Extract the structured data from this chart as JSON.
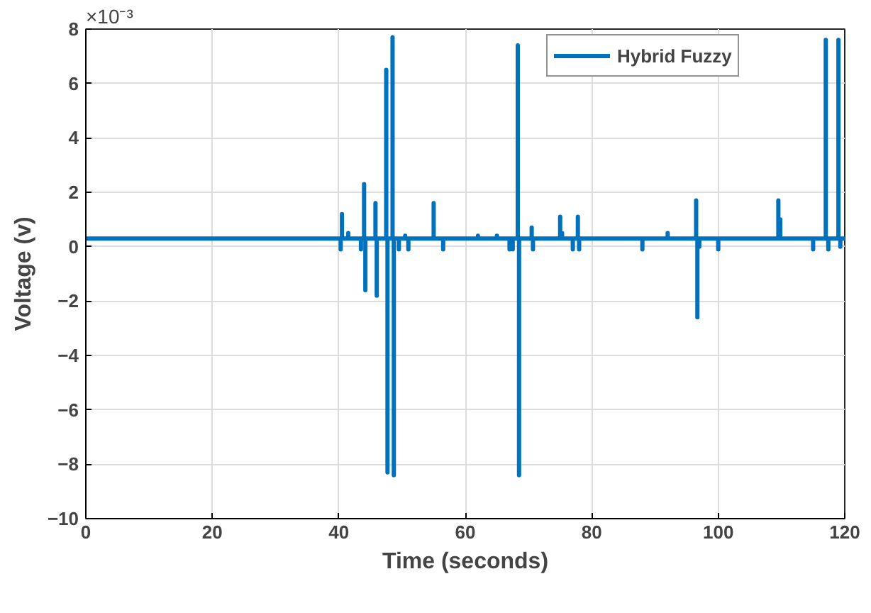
{
  "chart_data": {
    "type": "line",
    "xlabel": "Time (seconds)",
    "ylabel": "Voltage (v)",
    "annotations": [
      "×10⁻³"
    ],
    "xlim": [
      0,
      120
    ],
    "xticks": [
      0,
      20,
      40,
      60,
      80,
      100,
      120
    ],
    "ylim": [
      -10,
      8
    ],
    "yticks": [
      -10,
      -8,
      -6,
      -4,
      -2,
      0,
      2,
      4,
      6,
      8
    ],
    "grid": true,
    "legend": "top right",
    "line_style": "solid",
    "series": [
      {
        "name": "Hybrid Fuzzy",
        "color": "#0072bd",
        "x": [
          0,
          40.3,
          40.3,
          40.3,
          40.5,
          40.5,
          40.5,
          41.5,
          41.5,
          41.5,
          43.5,
          43.5,
          43.5,
          44,
          44,
          44,
          44.2,
          44.2,
          44.2,
          45.8,
          45.8,
          45.8,
          46,
          46,
          46,
          47.5,
          47.5,
          47.5,
          47.7,
          47.7,
          47.7,
          48.5,
          48.5,
          48.5,
          48.7,
          48.7,
          48.7,
          49.5,
          49.5,
          49.5,
          50.5,
          50.5,
          50.5,
          51,
          51,
          51,
          55,
          55,
          55,
          56.5,
          56.5,
          56.5,
          62,
          62,
          62,
          65,
          65,
          65,
          67,
          67,
          67,
          67.5,
          67.5,
          67.5,
          68.3,
          68.3,
          68.3,
          68.5,
          68.5,
          68.5,
          70.5,
          70.5,
          70.5,
          70.7,
          70.7,
          70.7,
          75,
          75,
          75,
          75.3,
          75.3,
          75.3,
          77,
          77,
          77,
          77.8,
          77.8,
          77.8,
          78,
          78,
          78,
          88,
          88,
          88,
          92,
          92,
          92,
          96.5,
          96.5,
          96.5,
          96.7,
          96.7,
          96.7,
          97,
          97,
          97,
          100,
          100,
          100,
          109.5,
          109.5,
          109.5,
          109.8,
          109.8,
          109.8,
          115,
          115,
          115,
          117,
          117,
          117,
          117.4,
          117.4,
          117.4,
          119,
          119,
          119,
          119.3,
          119.3,
          119.3,
          120
        ],
        "values": [
          0.3,
          0.3,
          -0.1,
          0.3,
          0.3,
          1.2,
          0.3,
          0.3,
          0.5,
          0.3,
          0.3,
          -0.1,
          0.3,
          0.3,
          2.3,
          0.3,
          0.3,
          -1.6,
          0.3,
          0.3,
          1.6,
          0.3,
          0.3,
          -1.8,
          0.3,
          0.3,
          6.5,
          0.3,
          0.3,
          -8.3,
          0.3,
          0.3,
          7.7,
          0.3,
          0.3,
          -8.4,
          0.3,
          0.3,
          -0.1,
          0.3,
          0.3,
          0.4,
          0.3,
          0.3,
          -0.1,
          0.3,
          0.3,
          1.6,
          0.3,
          0.3,
          -0.1,
          0.3,
          0.3,
          0.4,
          0.3,
          0.3,
          0.4,
          0.3,
          0.3,
          -0.1,
          0.3,
          0.3,
          -0.1,
          0.3,
          0.3,
          7.4,
          0.3,
          0.3,
          -8.4,
          0.3,
          0.3,
          0.7,
          0.3,
          0.3,
          -0.1,
          0.3,
          0.3,
          1.1,
          0.3,
          0.3,
          0.5,
          0.3,
          0.3,
          -0.1,
          0.3,
          0.3,
          1.1,
          0.3,
          0.3,
          -0.1,
          0.3,
          0.3,
          -0.1,
          0.3,
          0.3,
          0.5,
          0.3,
          0.3,
          1.7,
          0.3,
          0.3,
          -2.6,
          0.3,
          0.3,
          0.0,
          0.3,
          0.3,
          -0.1,
          0.3,
          0.3,
          1.7,
          0.3,
          0.3,
          1.0,
          0.3,
          0.3,
          -0.1,
          0.3,
          0.3,
          7.6,
          0.3,
          0.3,
          -0.1,
          0.3,
          0.3,
          7.6,
          0.3,
          0.3,
          0.0,
          0.3,
          0.3
        ]
      }
    ]
  }
}
